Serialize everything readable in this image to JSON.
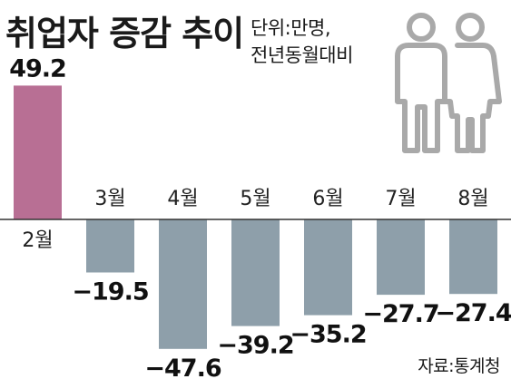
{
  "header": {
    "title": "취업자 증감 추이",
    "unit_line1": "단위:만명,",
    "unit_line2": "전년동월대비"
  },
  "footer": {
    "source": "자료:통계청"
  },
  "icons": {
    "people": "people-silhouette-icon"
  },
  "colors": {
    "positive": "#b86f94",
    "negative": "#8e9faa",
    "axis": "#333333"
  },
  "chart_data": {
    "type": "bar",
    "categories": [
      "2월",
      "3월",
      "4월",
      "5월",
      "6월",
      "7월",
      "8월"
    ],
    "values": [
      49.2,
      -19.5,
      -47.6,
      -39.2,
      -35.2,
      -27.7,
      -27.4
    ],
    "value_labels": [
      "49.2",
      "−19.5",
      "−47.6",
      "−39.2",
      "−35.2",
      "−27.7",
      "−27.4"
    ],
    "title": "취업자 증감 추이",
    "xlabel": "",
    "ylabel": "",
    "unit": "단위:만명, 전년동월대비",
    "ylim": [
      -50,
      55
    ],
    "grid": false
  }
}
